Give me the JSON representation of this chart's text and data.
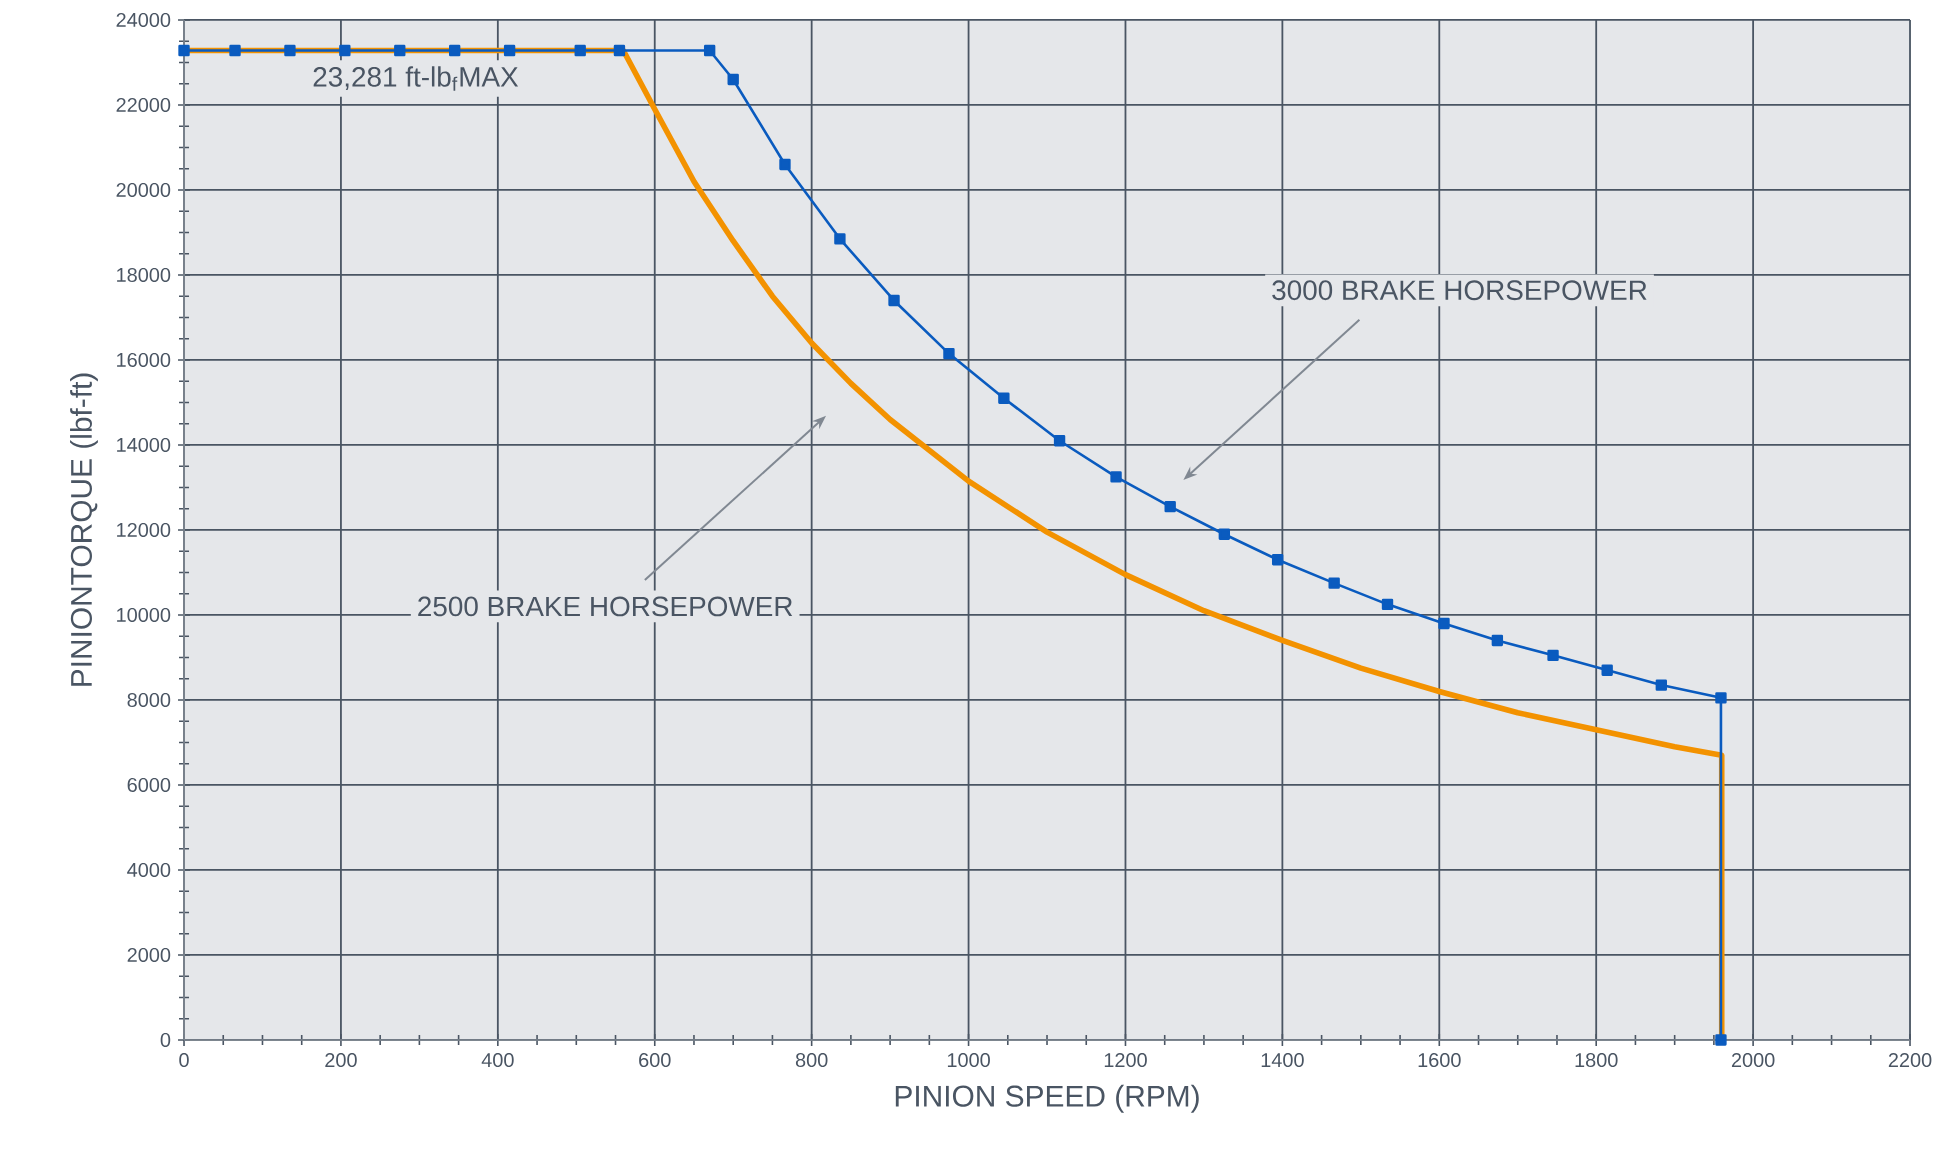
{
  "chart_data": {
    "type": "line",
    "xlabel": "PINION SPEED (RPM)",
    "ylabel": "PINIONTORQUE (lbf-ft)",
    "xlim": [
      0,
      2200
    ],
    "xticks": [
      0,
      200,
      400,
      600,
      800,
      1000,
      1200,
      1400,
      1600,
      1800,
      2000,
      2200
    ],
    "ylim": [
      0,
      24000
    ],
    "yticks": [
      0,
      2000,
      4000,
      6000,
      8000,
      10000,
      12000,
      14000,
      16000,
      18000,
      20000,
      22000,
      24000
    ],
    "grid": true,
    "line_style": "solid",
    "series": [
      {
        "color": "#f39200",
        "marker": "none",
        "x": [
          0,
          560,
          600,
          650,
          700,
          750,
          800,
          850,
          900,
          1000,
          1100,
          1200,
          1300,
          1400,
          1500,
          1600,
          1700,
          1800,
          1900,
          1960,
          1960
        ],
        "values": [
          23281,
          23281,
          21900,
          20200,
          18800,
          17500,
          16400,
          15450,
          14600,
          13150,
          11950,
          10950,
          10100,
          9400,
          8750,
          8200,
          7700,
          7300,
          6900,
          6700,
          0
        ]
      },
      {
        "color": "#0a5bbf",
        "marker": "square",
        "x": [
          0,
          65,
          135,
          205,
          275,
          345,
          415,
          505,
          555,
          670,
          700,
          766,
          836,
          905,
          975,
          1045,
          1116,
          1188,
          1257,
          1326,
          1394,
          1466,
          1534,
          1606,
          1674,
          1745,
          1814,
          1883,
          1959,
          1959
        ],
        "values": [
          23281,
          23281,
          23281,
          23281,
          23281,
          23281,
          23281,
          23281,
          23281,
          23281,
          22600,
          20600,
          18850,
          17400,
          16150,
          15100,
          14100,
          13250,
          12550,
          11900,
          11300,
          10750,
          10250,
          9800,
          9400,
          9050,
          8700,
          8350,
          8050,
          0
        ]
      }
    ],
    "annotations": [
      {
        "text": "23,281 ft-lb$_{f}$MAX",
        "x": 295,
        "y": 23281
      },
      "3000 BRAKE HORSEPOWER",
      "2500 BRAKE HORSEPOWER"
    ]
  }
}
